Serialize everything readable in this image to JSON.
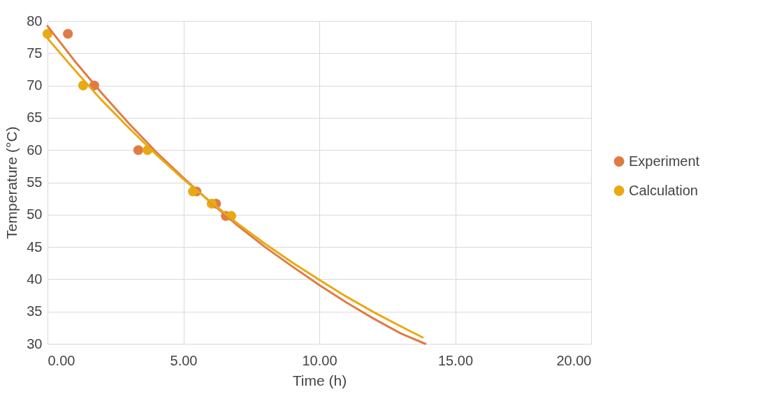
{
  "chart_data": {
    "type": "scatter",
    "xlabel": "Time (h)",
    "ylabel": "Temperature (°C)",
    "xlim": [
      0,
      20
    ],
    "xticks": [
      {
        "value": 0,
        "label": "0.00"
      },
      {
        "value": 5,
        "label": "5.00"
      },
      {
        "value": 10,
        "label": "10.00"
      },
      {
        "value": 15,
        "label": "15.00"
      },
      {
        "value": 20,
        "label": "20.00"
      }
    ],
    "ylim": [
      30,
      80
    ],
    "yticks": [
      30,
      35,
      40,
      45,
      50,
      55,
      60,
      65,
      70,
      75,
      80
    ],
    "grid": true,
    "legend": "right",
    "marker": "circle",
    "series": [
      {
        "name": "Experiment",
        "color": "#e07b45",
        "x": [
          0.75,
          1.72,
          3.34,
          5.48,
          6.2,
          6.56
        ],
        "values": [
          78,
          70,
          60,
          53.6,
          51.7,
          49.8
        ]
      },
      {
        "name": "Calculation",
        "color": "#e8a913",
        "x": [
          0,
          1.31,
          3.68,
          5.35,
          6.04,
          6.76
        ],
        "values": [
          78,
          70,
          60,
          53.6,
          51.7,
          49.8
        ]
      },
      {
        "type": "line",
        "marker": "none",
        "color": "#e07b45",
        "x": [
          0,
          1,
          2,
          3,
          4,
          5,
          6,
          7,
          8,
          9,
          10,
          11,
          12,
          13,
          13.9
        ],
        "values": [
          79.2,
          73.8,
          68.8,
          64.1,
          59.7,
          55.7,
          51.9,
          48.3,
          45.0,
          42.0,
          39.1,
          36.4,
          33.9,
          31.6,
          30.0
        ]
      },
      {
        "type": "line",
        "marker": "none",
        "color": "#e8a913",
        "x": [
          0,
          1,
          2,
          3,
          4,
          5,
          6,
          7,
          8,
          9,
          10,
          11,
          12,
          13,
          13.8
        ],
        "values": [
          77.3,
          72.4,
          67.7,
          63.4,
          59.3,
          55.5,
          52.0,
          48.6,
          45.5,
          42.6,
          39.9,
          37.3,
          34.9,
          32.7,
          31.0
        ]
      }
    ]
  }
}
